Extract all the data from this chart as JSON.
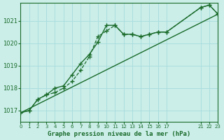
{
  "background_color": "#cbeee9",
  "grid_color": "#aadddd",
  "line_color": "#1a6b2a",
  "marker_color": "#1a6b2a",
  "xlabel": "Graphe pression niveau de la mer (hPa)",
  "xlim": [
    0,
    23
  ],
  "ylim": [
    1016.5,
    1021.8
  ],
  "yticks": [
    1017,
    1018,
    1019,
    1020,
    1021
  ],
  "xtick_positions": [
    0,
    1,
    2,
    3,
    4,
    5,
    6,
    7,
    8,
    9,
    10,
    11,
    12,
    13,
    14,
    15,
    16,
    17,
    21,
    22,
    23
  ],
  "xtick_labels": [
    "0",
    "1",
    "2",
    "3",
    "4",
    "5",
    "6",
    "7",
    "8",
    "9",
    "10",
    "11",
    "12",
    "13",
    "14",
    "15",
    "16",
    "17",
    "21",
    "22",
    "23"
  ],
  "line1_x": [
    0,
    1,
    2,
    3,
    4,
    5,
    6,
    7,
    8,
    9,
    10,
    11,
    12,
    13,
    14,
    15,
    16,
    17,
    21,
    22,
    23
  ],
  "line1_y": [
    1016.9,
    1017.0,
    1017.5,
    1017.7,
    1017.8,
    1018.0,
    1018.3,
    1018.8,
    1019.4,
    1020.3,
    1020.55,
    1020.8,
    1020.4,
    1020.4,
    1020.3,
    1020.4,
    1020.5,
    1020.5,
    1021.6,
    1021.7,
    1021.3
  ],
  "line2_x": [
    0,
    1,
    2,
    3,
    4,
    5,
    6,
    7,
    8,
    9,
    10,
    11,
    12,
    13,
    14,
    15,
    16,
    17,
    21,
    22,
    23
  ],
  "line2_y": [
    1016.9,
    1017.0,
    1017.5,
    1017.7,
    1018.0,
    1018.1,
    1018.6,
    1019.1,
    1019.5,
    1020.05,
    1020.8,
    1020.8,
    1020.4,
    1020.4,
    1020.3,
    1020.4,
    1020.5,
    1020.5,
    1021.6,
    1021.7,
    1021.3
  ],
  "line3_x": [
    0,
    23
  ],
  "line3_y": [
    1016.9,
    1021.3
  ]
}
